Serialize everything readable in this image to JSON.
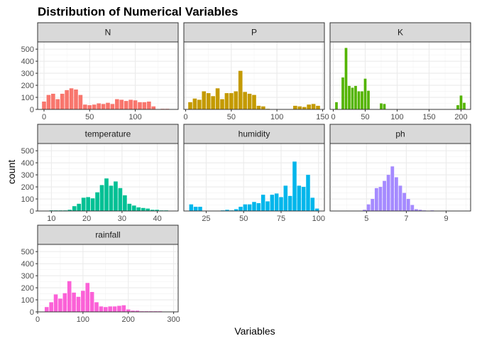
{
  "figure": {
    "title": "Distribution of Numerical Variables",
    "xlabel": "Variables",
    "ylabel": "count"
  },
  "chart_data": {
    "type": "bar",
    "style": "faceted histogram (ggplot2 theme_bw), shared y axis, free x axes",
    "grid": true,
    "ylim": [
      0,
      560
    ],
    "yticks": [
      0,
      100,
      200,
      300,
      400,
      500
    ],
    "facets": [
      {
        "name": "N",
        "color": "#F8766D",
        "xlim": [
          -7,
          147
        ],
        "xticks": [
          0,
          50,
          100
        ],
        "bins": [
          {
            "x": 0,
            "count": 65
          },
          {
            "x": 5,
            "count": 120
          },
          {
            "x": 10,
            "count": 130
          },
          {
            "x": 15,
            "count": 85
          },
          {
            "x": 20,
            "count": 130
          },
          {
            "x": 25,
            "count": 160
          },
          {
            "x": 30,
            "count": 175
          },
          {
            "x": 35,
            "count": 165
          },
          {
            "x": 40,
            "count": 120
          },
          {
            "x": 45,
            "count": 40
          },
          {
            "x": 50,
            "count": 35
          },
          {
            "x": 55,
            "count": 40
          },
          {
            "x": 60,
            "count": 50
          },
          {
            "x": 65,
            "count": 45
          },
          {
            "x": 70,
            "count": 55
          },
          {
            "x": 75,
            "count": 45
          },
          {
            "x": 80,
            "count": 85
          },
          {
            "x": 85,
            "count": 80
          },
          {
            "x": 90,
            "count": 70
          },
          {
            "x": 95,
            "count": 80
          },
          {
            "x": 100,
            "count": 75
          },
          {
            "x": 105,
            "count": 60
          },
          {
            "x": 110,
            "count": 60
          },
          {
            "x": 115,
            "count": 65
          },
          {
            "x": 120,
            "count": 25
          },
          {
            "x": 125,
            "count": 0
          },
          {
            "x": 130,
            "count": 5
          },
          {
            "x": 135,
            "count": 5
          },
          {
            "x": 140,
            "count": 0
          }
        ]
      },
      {
        "name": "P",
        "color": "#C49A00",
        "xlim": [
          -2,
          152
        ],
        "xticks": [
          0,
          50,
          100,
          150
        ],
        "bins": [
          {
            "x": 5,
            "count": 60
          },
          {
            "x": 10,
            "count": 90
          },
          {
            "x": 15,
            "count": 80
          },
          {
            "x": 20,
            "count": 150
          },
          {
            "x": 25,
            "count": 135
          },
          {
            "x": 30,
            "count": 110
          },
          {
            "x": 35,
            "count": 175
          },
          {
            "x": 40,
            "count": 85
          },
          {
            "x": 45,
            "count": 135
          },
          {
            "x": 50,
            "count": 135
          },
          {
            "x": 55,
            "count": 150
          },
          {
            "x": 60,
            "count": 320
          },
          {
            "x": 65,
            "count": 145
          },
          {
            "x": 70,
            "count": 130
          },
          {
            "x": 75,
            "count": 120
          },
          {
            "x": 80,
            "count": 30
          },
          {
            "x": 85,
            "count": 25
          },
          {
            "x": 90,
            "count": 5
          },
          {
            "x": 95,
            "count": 0
          },
          {
            "x": 100,
            "count": 0
          },
          {
            "x": 105,
            "count": 0
          },
          {
            "x": 110,
            "count": 0
          },
          {
            "x": 115,
            "count": 0
          },
          {
            "x": 120,
            "count": 30
          },
          {
            "x": 125,
            "count": 25
          },
          {
            "x": 130,
            "count": 20
          },
          {
            "x": 135,
            "count": 40
          },
          {
            "x": 140,
            "count": 45
          },
          {
            "x": 145,
            "count": 30
          }
        ]
      },
      {
        "name": "K",
        "color": "#53B400",
        "xlim": [
          -5,
          215
        ],
        "xticks": [
          0,
          50,
          100,
          150,
          200
        ],
        "bins": [
          {
            "x": 5,
            "count": 60
          },
          {
            "x": 15,
            "count": 265
          },
          {
            "x": 20,
            "count": 510
          },
          {
            "x": 25,
            "count": 195
          },
          {
            "x": 30,
            "count": 180
          },
          {
            "x": 35,
            "count": 195
          },
          {
            "x": 40,
            "count": 150
          },
          {
            "x": 45,
            "count": 150
          },
          {
            "x": 50,
            "count": 255
          },
          {
            "x": 55,
            "count": 155
          },
          {
            "x": 75,
            "count": 50
          },
          {
            "x": 80,
            "count": 45
          },
          {
            "x": 195,
            "count": 35
          },
          {
            "x": 200,
            "count": 115
          },
          {
            "x": 205,
            "count": 55
          }
        ]
      },
      {
        "name": "temperature",
        "color": "#00C094",
        "xlim": [
          6.1,
          45.9
        ],
        "xticks": [
          10,
          20,
          30,
          40
        ],
        "bins": [
          {
            "x": 10.0,
            "count": 5
          },
          {
            "x": 11.3,
            "count": 5
          },
          {
            "x": 12.6,
            "count": 5
          },
          {
            "x": 13.9,
            "count": 5
          },
          {
            "x": 15.2,
            "count": 10
          },
          {
            "x": 16.5,
            "count": 40
          },
          {
            "x": 17.8,
            "count": 60
          },
          {
            "x": 19.1,
            "count": 110
          },
          {
            "x": 20.4,
            "count": 115
          },
          {
            "x": 21.7,
            "count": 105
          },
          {
            "x": 23.0,
            "count": 155
          },
          {
            "x": 24.3,
            "count": 215
          },
          {
            "x": 25.6,
            "count": 270
          },
          {
            "x": 26.9,
            "count": 210
          },
          {
            "x": 28.2,
            "count": 245
          },
          {
            "x": 29.5,
            "count": 190
          },
          {
            "x": 30.8,
            "count": 130
          },
          {
            "x": 32.1,
            "count": 60
          },
          {
            "x": 33.4,
            "count": 45
          },
          {
            "x": 34.7,
            "count": 30
          },
          {
            "x": 36.0,
            "count": 25
          },
          {
            "x": 37.3,
            "count": 20
          },
          {
            "x": 38.6,
            "count": 10
          },
          {
            "x": 39.9,
            "count": 10
          },
          {
            "x": 41.2,
            "count": 5
          },
          {
            "x": 42.5,
            "count": 5
          }
        ]
      },
      {
        "name": "humidity",
        "color": "#00B6EB",
        "xlim": [
          10.1,
          103.9
        ],
        "xticks": [
          25,
          50,
          75,
          100
        ],
        "bins": [
          {
            "x": 15,
            "count": 55
          },
          {
            "x": 18,
            "count": 35
          },
          {
            "x": 21,
            "count": 35
          },
          {
            "x": 36,
            "count": 5
          },
          {
            "x": 39,
            "count": 10
          },
          {
            "x": 42,
            "count": 5
          },
          {
            "x": 45,
            "count": 15
          },
          {
            "x": 48,
            "count": 35
          },
          {
            "x": 51,
            "count": 55
          },
          {
            "x": 54,
            "count": 55
          },
          {
            "x": 57,
            "count": 75
          },
          {
            "x": 60,
            "count": 65
          },
          {
            "x": 63,
            "count": 135
          },
          {
            "x": 66,
            "count": 80
          },
          {
            "x": 69,
            "count": 135
          },
          {
            "x": 72,
            "count": 145
          },
          {
            "x": 75,
            "count": 115
          },
          {
            "x": 78,
            "count": 210
          },
          {
            "x": 81,
            "count": 125
          },
          {
            "x": 84,
            "count": 410
          },
          {
            "x": 87,
            "count": 210
          },
          {
            "x": 90,
            "count": 200
          },
          {
            "x": 93,
            "count": 300
          },
          {
            "x": 96,
            "count": 110
          },
          {
            "x": 99,
            "count": 20
          }
        ]
      },
      {
        "name": "ph",
        "color": "#A58AFF",
        "xlim": [
          3.17,
          10.23
        ],
        "xticks": [
          5,
          7,
          9
        ],
        "bins": [
          {
            "x": 4.9,
            "count": 10
          },
          {
            "x": 5.1,
            "count": 55
          },
          {
            "x": 5.3,
            "count": 100
          },
          {
            "x": 5.5,
            "count": 190
          },
          {
            "x": 5.7,
            "count": 200
          },
          {
            "x": 5.9,
            "count": 250
          },
          {
            "x": 6.1,
            "count": 300
          },
          {
            "x": 6.3,
            "count": 370
          },
          {
            "x": 6.5,
            "count": 280
          },
          {
            "x": 6.7,
            "count": 210
          },
          {
            "x": 6.9,
            "count": 150
          },
          {
            "x": 7.1,
            "count": 100
          },
          {
            "x": 7.3,
            "count": 50
          },
          {
            "x": 7.5,
            "count": 15
          },
          {
            "x": 7.7,
            "count": 10
          },
          {
            "x": 7.9,
            "count": 5
          },
          {
            "x": 8.3,
            "count": 5
          },
          {
            "x": 8.7,
            "count": 2
          },
          {
            "x": 9.5,
            "count": 2
          }
        ]
      },
      {
        "name": "rainfall",
        "color": "#FB61D7",
        "xlim": [
          0,
          310
        ],
        "xticks": [
          0,
          100,
          200,
          300
        ],
        "bins": [
          {
            "x": 20,
            "count": 40
          },
          {
            "x": 30,
            "count": 80
          },
          {
            "x": 40,
            "count": 145
          },
          {
            "x": 50,
            "count": 110
          },
          {
            "x": 60,
            "count": 155
          },
          {
            "x": 70,
            "count": 255
          },
          {
            "x": 80,
            "count": 160
          },
          {
            "x": 90,
            "count": 125
          },
          {
            "x": 100,
            "count": 175
          },
          {
            "x": 110,
            "count": 240
          },
          {
            "x": 120,
            "count": 165
          },
          {
            "x": 130,
            "count": 80
          },
          {
            "x": 140,
            "count": 45
          },
          {
            "x": 150,
            "count": 40
          },
          {
            "x": 160,
            "count": 45
          },
          {
            "x": 170,
            "count": 45
          },
          {
            "x": 180,
            "count": 50
          },
          {
            "x": 190,
            "count": 55
          },
          {
            "x": 200,
            "count": 20
          },
          {
            "x": 210,
            "count": 10
          },
          {
            "x": 220,
            "count": 10
          },
          {
            "x": 230,
            "count": 5
          },
          {
            "x": 240,
            "count": 5
          },
          {
            "x": 250,
            "count": 5
          },
          {
            "x": 260,
            "count": 5
          },
          {
            "x": 270,
            "count": 5
          },
          {
            "x": 290,
            "count": 2
          }
        ]
      }
    ]
  }
}
